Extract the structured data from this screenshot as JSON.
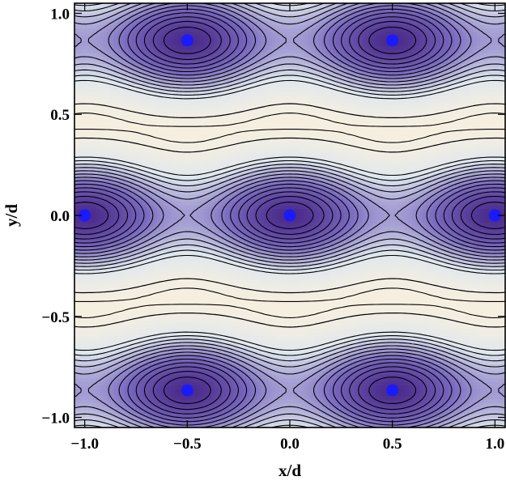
{
  "chart_data": {
    "type": "contour",
    "xlabel": "x/d",
    "ylabel": "y/d",
    "xlim": [
      -1.05,
      1.05
    ],
    "ylim": [
      -1.05,
      1.05
    ],
    "x_ticks": [
      -1.0,
      -0.5,
      0.0,
      0.5,
      1.0
    ],
    "x_tick_labels": [
      "−1.0",
      "−0.5",
      "0.0",
      "0.5",
      "1.0"
    ],
    "y_ticks": [
      -1.0,
      -0.5,
      0.0,
      0.5,
      1.0
    ],
    "y_tick_labels": [
      "−1.0",
      "−0.5",
      "0.0",
      "0.5",
      "1.0"
    ],
    "grid": false,
    "colors": {
      "minimum": "#4a2a8a",
      "low": "#7a6ac0",
      "mid": "#dfe7ee",
      "high": "#f6efe0",
      "solid_contour": "#000000",
      "marker": "#1a1aff"
    },
    "markers": [
      {
        "x": -0.5,
        "y": 0.866
      },
      {
        "x": 0.5,
        "y": 0.866
      },
      {
        "x": -1.0,
        "y": 0.0
      },
      {
        "x": 0.0,
        "y": 0.0
      },
      {
        "x": 1.0,
        "y": 0.0
      },
      {
        "x": -0.5,
        "y": -0.866
      },
      {
        "x": 0.5,
        "y": -0.866
      }
    ]
  }
}
